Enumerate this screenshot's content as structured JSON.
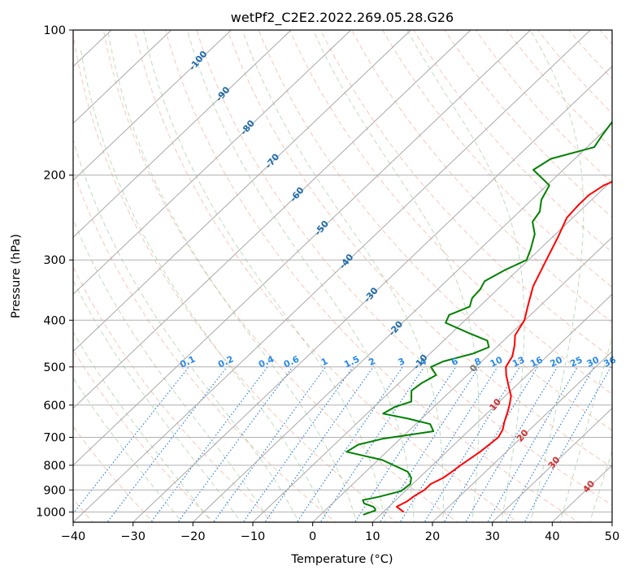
{
  "chart_data": {
    "type": "line",
    "subtype": "skew-T log-p diagram",
    "title": "wetPf2_C2E2.2022.269.05.28.G26",
    "xlabel": "Temperature (°C)",
    "ylabel": "Pressure (hPa)",
    "xlim": [
      -40,
      50
    ],
    "ylim": [
      1050,
      100
    ],
    "x_ticks": [
      -40,
      -30,
      -20,
      -10,
      0,
      10,
      20,
      30,
      40,
      50
    ],
    "y_ticks": [
      1000,
      900,
      800,
      700,
      600,
      500,
      400,
      300,
      200,
      100
    ],
    "grid": true,
    "isotherm_labels": [
      "-100",
      "-90",
      "-80",
      "-70",
      "-60",
      "-50",
      "-40",
      "-30",
      "-20",
      "-10",
      "0",
      "10",
      "20",
      "30",
      "40"
    ],
    "mixing_ratio_labels": [
      "0.1",
      "0.2",
      "0.4",
      "0.6",
      "1",
      "1.5",
      "2",
      "3",
      "4",
      "6",
      "8",
      "10",
      "13",
      "16",
      "20",
      "25",
      "30",
      "36"
    ],
    "mixing_ratio_values": [
      0.1,
      0.2,
      0.4,
      0.6,
      1,
      1.5,
      2,
      3,
      4,
      6,
      8,
      10,
      13,
      16,
      20,
      25,
      30,
      36
    ],
    "series": [
      {
        "name": "temperature",
        "color": "#ff0000",
        "points": [
          [
            13.4,
            1000
          ],
          [
            11.3,
            975
          ],
          [
            12.1,
            950
          ],
          [
            12.4,
            925
          ],
          [
            13.0,
            900
          ],
          [
            13.0,
            875
          ],
          [
            14.0,
            850
          ],
          [
            14.4,
            825
          ],
          [
            14.7,
            800
          ],
          [
            15.6,
            750
          ],
          [
            16.1,
            700
          ],
          [
            15.5,
            675
          ],
          [
            14.4,
            650
          ],
          [
            13.2,
            620
          ],
          [
            12.3,
            600
          ],
          [
            11.0,
            575
          ],
          [
            9.0,
            550
          ],
          [
            6.5,
            520
          ],
          [
            5.0,
            500
          ],
          [
            4.2,
            475
          ],
          [
            2.6,
            450
          ],
          [
            1.0,
            430
          ],
          [
            -0.1,
            400
          ],
          [
            -2.3,
            370
          ],
          [
            -4.6,
            340
          ],
          [
            -7.0,
            300
          ],
          [
            -9.0,
            270
          ],
          [
            -11.0,
            245
          ],
          [
            -11.3,
            230
          ],
          [
            -11.3,
            220
          ],
          [
            -10.5,
            210
          ],
          [
            -7.0,
            195
          ],
          [
            -5.0,
            185
          ],
          [
            -4.5,
            175
          ],
          [
            -3.8,
            160
          ],
          [
            -3.0,
            145
          ],
          [
            -2.2,
            135
          ],
          [
            -1.8,
            125
          ],
          [
            -0.5,
            115
          ],
          [
            1.6,
            108
          ],
          [
            3.4,
            103
          ],
          [
            4.0,
            100
          ]
        ]
      },
      {
        "name": "dewpoint",
        "color": "#008000",
        "points": [
          [
            7.1,
            1013
          ],
          [
            8.4,
            993
          ],
          [
            8.1,
            985
          ],
          [
            7.4,
            975
          ],
          [
            5.3,
            960
          ],
          [
            4.5,
            945
          ],
          [
            6.6,
            930
          ],
          [
            9.3,
            905
          ],
          [
            9.6,
            875
          ],
          [
            8.7,
            850
          ],
          [
            7.0,
            825
          ],
          [
            0.7,
            780
          ],
          [
            -6.7,
            750
          ],
          [
            -6.0,
            725
          ],
          [
            -3.0,
            705
          ],
          [
            4.2,
            680
          ],
          [
            2.4,
            657
          ],
          [
            -2.3,
            640
          ],
          [
            -7.3,
            625
          ],
          [
            -6.5,
            605
          ],
          [
            -4.7,
            590
          ],
          [
            -6.6,
            560
          ],
          [
            -6.2,
            540
          ],
          [
            -5.2,
            520
          ],
          [
            -7.5,
            500
          ],
          [
            -6.4,
            487
          ],
          [
            -2.8,
            469
          ],
          [
            -1.3,
            455
          ],
          [
            -2.7,
            441
          ],
          [
            -7.2,
            425
          ],
          [
            -12.8,
            405
          ],
          [
            -13.6,
            390
          ],
          [
            -11.6,
            375
          ],
          [
            -12.7,
            360
          ],
          [
            -12.9,
            345
          ],
          [
            -13.6,
            332
          ],
          [
            -12.2,
            315
          ],
          [
            -10.3,
            300
          ],
          [
            -11.5,
            285
          ],
          [
            -13.5,
            265
          ],
          [
            -16.0,
            250
          ],
          [
            -16.6,
            238
          ],
          [
            -18.4,
            225
          ],
          [
            -19.6,
            210
          ],
          [
            -25.0,
            195
          ],
          [
            -24.0,
            185
          ],
          [
            -18.8,
            175
          ],
          [
            -19.6,
            165
          ],
          [
            -20.6,
            150
          ],
          [
            -22.0,
            140
          ],
          [
            -20.6,
            130
          ],
          [
            -17.6,
            122
          ],
          [
            -17.0,
            115
          ],
          [
            -14.5,
            108
          ],
          [
            -11.0,
            103
          ],
          [
            -9.8,
            100
          ]
        ]
      }
    ]
  }
}
